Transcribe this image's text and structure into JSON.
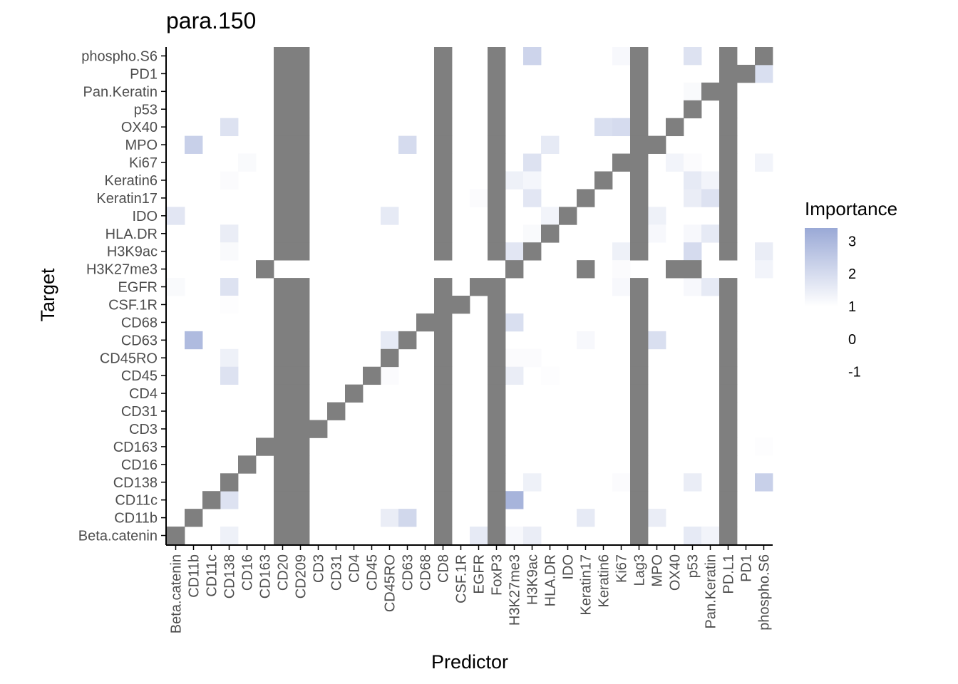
{
  "chart_data": {
    "type": "heatmap",
    "title": "para.150",
    "xlabel": "Predictor",
    "ylabel": "Target",
    "x_categories": [
      "Beta.catenin",
      "CD11b",
      "CD11c",
      "CD138",
      "CD16",
      "CD163",
      "CD20",
      "CD209",
      "CD3",
      "CD31",
      "CD4",
      "CD45",
      "CD45RO",
      "CD63",
      "CD68",
      "CD8",
      "CSF.1R",
      "EGFR",
      "FoxP3",
      "H3K27me3",
      "H3K9ac",
      "HLA.DR",
      "IDO",
      "Keratin17",
      "Keratin6",
      "Ki67",
      "Lag3",
      "MPO",
      "OX40",
      "p53",
      "Pan.Keratin",
      "PD.L1",
      "PD1",
      "phospho.S6"
    ],
    "y_categories": [
      "Beta.catenin",
      "CD11b",
      "CD11c",
      "CD138",
      "CD16",
      "CD163",
      "CD3",
      "CD31",
      "CD4",
      "CD45",
      "CD45RO",
      "CD63",
      "CD68",
      "CSF.1R",
      "EGFR",
      "H3K27me3",
      "H3K9ac",
      "HLA.DR",
      "IDO",
      "Keratin17",
      "Keratin6",
      "Ki67",
      "MPO",
      "OX40",
      "p53",
      "Pan.Keratin",
      "PD1",
      "phospho.S6"
    ],
    "na_color": "#7f7f7f",
    "legend": {
      "title": "Importance",
      "ticks": [
        3,
        2,
        1,
        0,
        -1
      ],
      "scale_min": 1,
      "scale_max": 3.4,
      "color_low": "#ffffff",
      "color_high": "#9aa9d6"
    },
    "na_cells": [
      [
        "phospho.S6",
        "CD20"
      ],
      [
        "phospho.S6",
        "CD209"
      ],
      [
        "phospho.S6",
        "CD8"
      ],
      [
        "phospho.S6",
        "FoxP3"
      ],
      [
        "phospho.S6",
        "Lag3"
      ],
      [
        "phospho.S6",
        "PD.L1"
      ],
      [
        "phospho.S6",
        "phospho.S6"
      ],
      [
        "PD1",
        "CD20"
      ],
      [
        "PD1",
        "CD209"
      ],
      [
        "PD1",
        "CD8"
      ],
      [
        "PD1",
        "FoxP3"
      ],
      [
        "PD1",
        "Lag3"
      ],
      [
        "PD1",
        "PD.L1"
      ],
      [
        "PD1",
        "PD1"
      ],
      [
        "Pan.Keratin",
        "CD20"
      ],
      [
        "Pan.Keratin",
        "CD209"
      ],
      [
        "Pan.Keratin",
        "CD8"
      ],
      [
        "Pan.Keratin",
        "FoxP3"
      ],
      [
        "Pan.Keratin",
        "Lag3"
      ],
      [
        "Pan.Keratin",
        "Pan.Keratin"
      ],
      [
        "Pan.Keratin",
        "PD.L1"
      ],
      [
        "p53",
        "CD20"
      ],
      [
        "p53",
        "CD209"
      ],
      [
        "p53",
        "CD8"
      ],
      [
        "p53",
        "FoxP3"
      ],
      [
        "p53",
        "Lag3"
      ],
      [
        "p53",
        "p53"
      ],
      [
        "p53",
        "PD.L1"
      ],
      [
        "OX40",
        "CD20"
      ],
      [
        "OX40",
        "CD209"
      ],
      [
        "OX40",
        "CD8"
      ],
      [
        "OX40",
        "FoxP3"
      ],
      [
        "OX40",
        "Lag3"
      ],
      [
        "OX40",
        "OX40"
      ],
      [
        "OX40",
        "PD.L1"
      ],
      [
        "MPO",
        "CD20"
      ],
      [
        "MPO",
        "CD209"
      ],
      [
        "MPO",
        "CD8"
      ],
      [
        "MPO",
        "FoxP3"
      ],
      [
        "MPO",
        "Lag3"
      ],
      [
        "MPO",
        "MPO"
      ],
      [
        "MPO",
        "PD.L1"
      ],
      [
        "Ki67",
        "CD20"
      ],
      [
        "Ki67",
        "CD209"
      ],
      [
        "Ki67",
        "CD8"
      ],
      [
        "Ki67",
        "FoxP3"
      ],
      [
        "Ki67",
        "Ki67"
      ],
      [
        "Ki67",
        "Lag3"
      ],
      [
        "Ki67",
        "PD.L1"
      ],
      [
        "Keratin6",
        "CD20"
      ],
      [
        "Keratin6",
        "CD209"
      ],
      [
        "Keratin6",
        "CD8"
      ],
      [
        "Keratin6",
        "FoxP3"
      ],
      [
        "Keratin6",
        "Keratin6"
      ],
      [
        "Keratin6",
        "Lag3"
      ],
      [
        "Keratin6",
        "PD.L1"
      ],
      [
        "Keratin17",
        "CD20"
      ],
      [
        "Keratin17",
        "CD209"
      ],
      [
        "Keratin17",
        "CD8"
      ],
      [
        "Keratin17",
        "FoxP3"
      ],
      [
        "Keratin17",
        "Keratin17"
      ],
      [
        "Keratin17",
        "Lag3"
      ],
      [
        "Keratin17",
        "PD.L1"
      ],
      [
        "IDO",
        "CD20"
      ],
      [
        "IDO",
        "CD209"
      ],
      [
        "IDO",
        "CD8"
      ],
      [
        "IDO",
        "FoxP3"
      ],
      [
        "IDO",
        "IDO"
      ],
      [
        "IDO",
        "Lag3"
      ],
      [
        "IDO",
        "PD.L1"
      ],
      [
        "HLA.DR",
        "CD20"
      ],
      [
        "HLA.DR",
        "CD209"
      ],
      [
        "HLA.DR",
        "CD8"
      ],
      [
        "HLA.DR",
        "FoxP3"
      ],
      [
        "HLA.DR",
        "HLA.DR"
      ],
      [
        "HLA.DR",
        "Lag3"
      ],
      [
        "HLA.DR",
        "PD.L1"
      ],
      [
        "H3K9ac",
        "CD20"
      ],
      [
        "H3K9ac",
        "CD209"
      ],
      [
        "H3K9ac",
        "CD8"
      ],
      [
        "H3K9ac",
        "FoxP3"
      ],
      [
        "H3K9ac",
        "H3K9ac"
      ],
      [
        "H3K9ac",
        "Lag3"
      ],
      [
        "H3K9ac",
        "PD.L1"
      ],
      [
        "H3K27me3",
        "CD163"
      ],
      [
        "H3K27me3",
        "H3K27me3"
      ],
      [
        "H3K27me3",
        "Keratin17"
      ],
      [
        "H3K27me3",
        "OX40"
      ],
      [
        "H3K27me3",
        "p53"
      ],
      [
        "EGFR",
        "CD20"
      ],
      [
        "EGFR",
        "CD209"
      ],
      [
        "EGFR",
        "CD8"
      ],
      [
        "EGFR",
        "EGFR"
      ],
      [
        "EGFR",
        "FoxP3"
      ],
      [
        "EGFR",
        "Lag3"
      ],
      [
        "EGFR",
        "PD.L1"
      ],
      [
        "CSF.1R",
        "CD20"
      ],
      [
        "CSF.1R",
        "CD209"
      ],
      [
        "CSF.1R",
        "CD8"
      ],
      [
        "CSF.1R",
        "CSF.1R"
      ],
      [
        "CSF.1R",
        "FoxP3"
      ],
      [
        "CSF.1R",
        "Lag3"
      ],
      [
        "CSF.1R",
        "PD.L1"
      ],
      [
        "CD68",
        "CD20"
      ],
      [
        "CD68",
        "CD209"
      ],
      [
        "CD68",
        "CD68"
      ],
      [
        "CD68",
        "CD8"
      ],
      [
        "CD68",
        "FoxP3"
      ],
      [
        "CD68",
        "Lag3"
      ],
      [
        "CD68",
        "PD.L1"
      ],
      [
        "CD63",
        "CD20"
      ],
      [
        "CD63",
        "CD209"
      ],
      [
        "CD63",
        "CD63"
      ],
      [
        "CD63",
        "CD8"
      ],
      [
        "CD63",
        "FoxP3"
      ],
      [
        "CD63",
        "Lag3"
      ],
      [
        "CD63",
        "PD.L1"
      ],
      [
        "CD45RO",
        "CD20"
      ],
      [
        "CD45RO",
        "CD209"
      ],
      [
        "CD45RO",
        "CD45RO"
      ],
      [
        "CD45RO",
        "CD8"
      ],
      [
        "CD45RO",
        "FoxP3"
      ],
      [
        "CD45RO",
        "Lag3"
      ],
      [
        "CD45RO",
        "PD.L1"
      ],
      [
        "CD45",
        "CD20"
      ],
      [
        "CD45",
        "CD209"
      ],
      [
        "CD45",
        "CD45"
      ],
      [
        "CD45",
        "CD8"
      ],
      [
        "CD45",
        "FoxP3"
      ],
      [
        "CD45",
        "Lag3"
      ],
      [
        "CD45",
        "PD.L1"
      ],
      [
        "CD4",
        "CD20"
      ],
      [
        "CD4",
        "CD209"
      ],
      [
        "CD4",
        "CD4"
      ],
      [
        "CD4",
        "CD8"
      ],
      [
        "CD4",
        "FoxP3"
      ],
      [
        "CD4",
        "Lag3"
      ],
      [
        "CD4",
        "PD.L1"
      ],
      [
        "CD31",
        "CD20"
      ],
      [
        "CD31",
        "CD209"
      ],
      [
        "CD31",
        "CD31"
      ],
      [
        "CD31",
        "CD8"
      ],
      [
        "CD31",
        "FoxP3"
      ],
      [
        "CD31",
        "Lag3"
      ],
      [
        "CD31",
        "PD.L1"
      ],
      [
        "CD3",
        "CD20"
      ],
      [
        "CD3",
        "CD209"
      ],
      [
        "CD3",
        "CD3"
      ],
      [
        "CD3",
        "CD8"
      ],
      [
        "CD3",
        "FoxP3"
      ],
      [
        "CD3",
        "Lag3"
      ],
      [
        "CD3",
        "PD.L1"
      ],
      [
        "CD163",
        "CD163"
      ],
      [
        "CD163",
        "CD20"
      ],
      [
        "CD163",
        "CD209"
      ],
      [
        "CD163",
        "CD8"
      ],
      [
        "CD163",
        "FoxP3"
      ],
      [
        "CD163",
        "Lag3"
      ],
      [
        "CD163",
        "PD.L1"
      ],
      [
        "CD16",
        "CD16"
      ],
      [
        "CD16",
        "CD20"
      ],
      [
        "CD16",
        "CD209"
      ],
      [
        "CD16",
        "CD8"
      ],
      [
        "CD16",
        "FoxP3"
      ],
      [
        "CD16",
        "Lag3"
      ],
      [
        "CD16",
        "PD.L1"
      ],
      [
        "CD138",
        "CD138"
      ],
      [
        "CD138",
        "CD20"
      ],
      [
        "CD138",
        "CD209"
      ],
      [
        "CD138",
        "CD8"
      ],
      [
        "CD138",
        "FoxP3"
      ],
      [
        "CD138",
        "Lag3"
      ],
      [
        "CD138",
        "PD.L1"
      ],
      [
        "CD11c",
        "CD11c"
      ],
      [
        "CD11c",
        "CD20"
      ],
      [
        "CD11c",
        "CD209"
      ],
      [
        "CD11c",
        "CD8"
      ],
      [
        "CD11c",
        "FoxP3"
      ],
      [
        "CD11c",
        "Lag3"
      ],
      [
        "CD11c",
        "PD.L1"
      ],
      [
        "CD11b",
        "CD11b"
      ],
      [
        "CD11b",
        "CD20"
      ],
      [
        "CD11b",
        "CD209"
      ],
      [
        "CD11b",
        "CD8"
      ],
      [
        "CD11b",
        "FoxP3"
      ],
      [
        "CD11b",
        "Lag3"
      ],
      [
        "CD11b",
        "PD.L1"
      ],
      [
        "Beta.catenin",
        "Beta.catenin"
      ],
      [
        "Beta.catenin",
        "CD20"
      ],
      [
        "Beta.catenin",
        "CD209"
      ],
      [
        "Beta.catenin",
        "CD8"
      ],
      [
        "Beta.catenin",
        "FoxP3"
      ],
      [
        "Beta.catenin",
        "Lag3"
      ],
      [
        "Beta.catenin",
        "PD.L1"
      ]
    ],
    "value_cells": [
      [
        "phospho.S6",
        "H3K9ac",
        2.2
      ],
      [
        "phospho.S6",
        "Ki67",
        1.2
      ],
      [
        "phospho.S6",
        "p53",
        1.8
      ],
      [
        "PD1",
        "phospho.S6",
        1.9
      ],
      [
        "Pan.Keratin",
        "p53",
        1.15
      ],
      [
        "OX40",
        "CD138",
        1.8
      ],
      [
        "OX40",
        "Keratin6",
        1.9
      ],
      [
        "OX40",
        "Ki67",
        2.0
      ],
      [
        "MPO",
        "CD11b",
        2.3
      ],
      [
        "MPO",
        "CD63",
        2.0
      ],
      [
        "MPO",
        "HLA.DR",
        1.6
      ],
      [
        "Ki67",
        "CD16",
        1.15
      ],
      [
        "Ki67",
        "H3K9ac",
        1.8
      ],
      [
        "Ki67",
        "OX40",
        1.3
      ],
      [
        "Ki67",
        "p53",
        1.1
      ],
      [
        "Ki67",
        "phospho.S6",
        1.3
      ],
      [
        "Keratin6",
        "CD138",
        1.1
      ],
      [
        "Keratin6",
        "H3K27me3",
        1.4
      ],
      [
        "Keratin6",
        "H3K9ac",
        1.25
      ],
      [
        "Keratin6",
        "p53",
        1.6
      ],
      [
        "Keratin6",
        "Pan.Keratin",
        1.3
      ],
      [
        "Keratin17",
        "EGFR",
        1.1
      ],
      [
        "Keratin17",
        "H3K9ac",
        1.7
      ],
      [
        "Keratin17",
        "p53",
        1.5
      ],
      [
        "Keratin17",
        "Pan.Keratin",
        1.8
      ],
      [
        "IDO",
        "Beta.catenin",
        1.7
      ],
      [
        "IDO",
        "CD45RO",
        1.6
      ],
      [
        "IDO",
        "HLA.DR",
        1.3
      ],
      [
        "IDO",
        "MPO",
        1.4
      ],
      [
        "HLA.DR",
        "CD138",
        1.5
      ],
      [
        "HLA.DR",
        "H3K9ac",
        1.15
      ],
      [
        "HLA.DR",
        "MPO",
        1.2
      ],
      [
        "HLA.DR",
        "p53",
        1.2
      ],
      [
        "HLA.DR",
        "Pan.Keratin",
        1.6
      ],
      [
        "H3K9ac",
        "CD138",
        1.15
      ],
      [
        "H3K9ac",
        "H3K27me3",
        1.7
      ],
      [
        "H3K9ac",
        "Ki67",
        1.4
      ],
      [
        "H3K9ac",
        "p53",
        2.0
      ],
      [
        "H3K9ac",
        "phospho.S6",
        1.5
      ],
      [
        "H3K27me3",
        "Ki67",
        1.1
      ],
      [
        "H3K27me3",
        "phospho.S6",
        1.3
      ],
      [
        "EGFR",
        "Beta.catenin",
        1.15
      ],
      [
        "EGFR",
        "CD138",
        1.8
      ],
      [
        "EGFR",
        "Ki67",
        1.2
      ],
      [
        "EGFR",
        "p53",
        1.2
      ],
      [
        "EGFR",
        "Pan.Keratin",
        1.6
      ],
      [
        "CSF.1R",
        "CD138",
        1.05
      ],
      [
        "CD68",
        "H3K27me3",
        1.9
      ],
      [
        "CD63",
        "CD11b",
        2.9
      ],
      [
        "CD63",
        "CD45RO",
        1.6
      ],
      [
        "CD63",
        "Keratin17",
        1.2
      ],
      [
        "CD63",
        "MPO",
        1.9
      ],
      [
        "CD45RO",
        "CD138",
        1.4
      ],
      [
        "CD45RO",
        "H3K27me3",
        1.1
      ],
      [
        "CD45RO",
        "H3K9ac",
        1.1
      ],
      [
        "CD45",
        "CD138",
        1.8
      ],
      [
        "CD45",
        "CD45RO",
        1.1
      ],
      [
        "CD45",
        "H3K27me3",
        1.5
      ],
      [
        "CD45",
        "HLA.DR",
        1.05
      ],
      [
        "CD163",
        "phospho.S6",
        1.05
      ],
      [
        "CD138",
        "H3K9ac",
        1.4
      ],
      [
        "CD138",
        "Ki67",
        1.1
      ],
      [
        "CD138",
        "p53",
        1.5
      ],
      [
        "CD138",
        "phospho.S6",
        2.3
      ],
      [
        "CD11c",
        "CD138",
        1.8
      ],
      [
        "CD11c",
        "H3K27me3",
        3.1
      ],
      [
        "CD11b",
        "CD45RO",
        1.5
      ],
      [
        "CD11b",
        "CD63",
        2.1
      ],
      [
        "CD11b",
        "Keratin17",
        1.6
      ],
      [
        "CD11b",
        "MPO",
        1.5
      ],
      [
        "Beta.catenin",
        "CD138",
        1.4
      ],
      [
        "Beta.catenin",
        "EGFR",
        1.6
      ],
      [
        "Beta.catenin",
        "H3K27me3",
        1.2
      ],
      [
        "Beta.catenin",
        "H3K9ac",
        1.5
      ],
      [
        "Beta.catenin",
        "p53",
        1.6
      ],
      [
        "Beta.catenin",
        "Pan.Keratin",
        1.3
      ]
    ]
  }
}
